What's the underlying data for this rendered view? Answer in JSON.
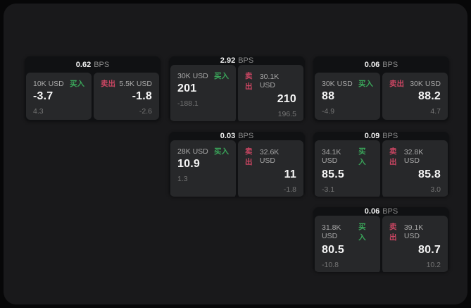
{
  "theme": {
    "background": "#070708",
    "panel_bg": "#19191b",
    "card_bg": "#101113",
    "tile_bg": "#27282a",
    "text_primary": "#f5f5f5",
    "text_secondary": "#a8a8a8",
    "text_muted": "#757575",
    "buy_color": "#3aa65a",
    "sell_color": "#cc4663"
  },
  "labels": {
    "bps_suffix": "BPS",
    "buy": "买入",
    "sell": "卖出"
  },
  "cards": [
    {
      "col": 1,
      "row": 1,
      "bps": "0.62",
      "buy": {
        "size": "10K USD",
        "price": "-3.7",
        "delta": "4.3"
      },
      "sell": {
        "size": "5.5K USD",
        "price": "-1.8",
        "delta": "-2.6"
      }
    },
    {
      "col": 2,
      "row": 1,
      "bps": "2.92",
      "buy": {
        "size": "30K USD",
        "price": "201",
        "delta": "-188.1"
      },
      "sell": {
        "size": "30.1K USD",
        "price": "210",
        "delta": "196.5"
      }
    },
    {
      "col": 3,
      "row": 1,
      "bps": "0.06",
      "buy": {
        "size": "30K USD",
        "price": "88",
        "delta": "-4.9"
      },
      "sell": {
        "size": "30K USD",
        "price": "88.2",
        "delta": "4.7"
      }
    },
    {
      "col": 2,
      "row": 2,
      "bps": "0.03",
      "buy": {
        "size": "28K USD",
        "price": "10.9",
        "delta": "1.3"
      },
      "sell": {
        "size": "32.6K USD",
        "price": "11",
        "delta": "-1.8"
      }
    },
    {
      "col": 3,
      "row": 2,
      "bps": "0.09",
      "buy": {
        "size": "34.1K USD",
        "price": "85.5",
        "delta": "-3.1"
      },
      "sell": {
        "size": "32.8K USD",
        "price": "85.8",
        "delta": "3.0"
      }
    },
    {
      "col": 3,
      "row": 3,
      "bps": "0.06",
      "buy": {
        "size": "31.8K USD",
        "price": "80.5",
        "delta": "-10.8"
      },
      "sell": {
        "size": "39.1K USD",
        "price": "80.7",
        "delta": "10.2"
      }
    }
  ]
}
